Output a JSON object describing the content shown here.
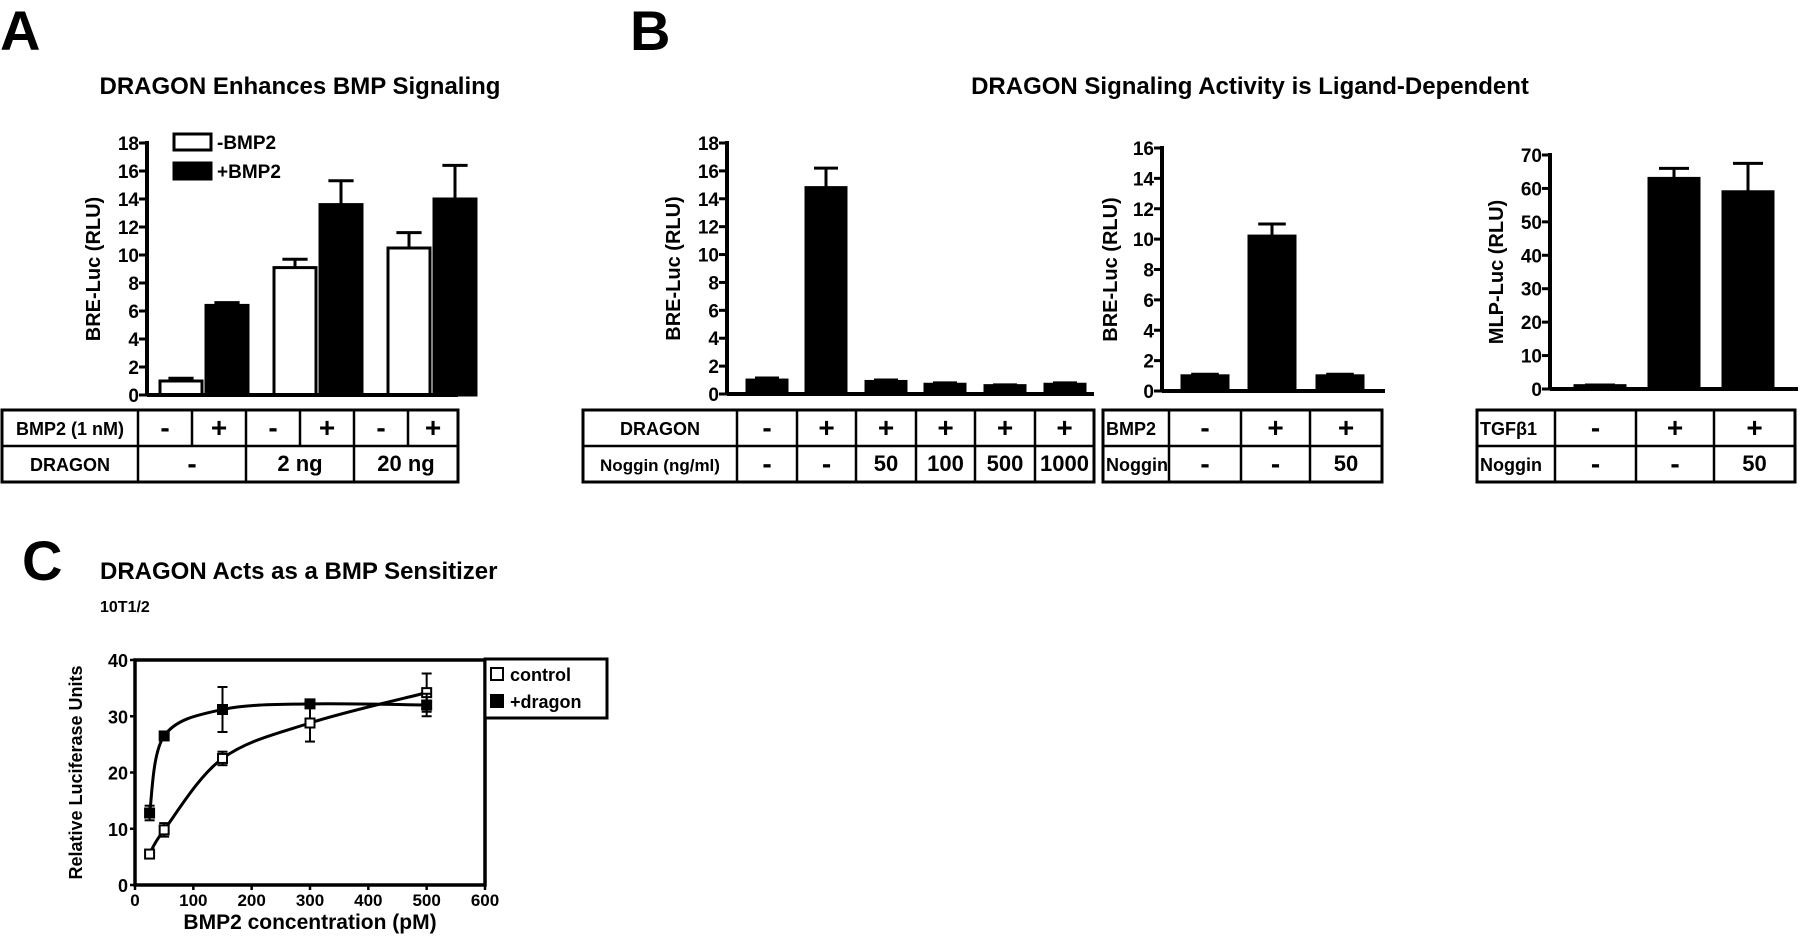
{
  "panels": {
    "a_label": "A",
    "b_label": "B",
    "c_label": "C",
    "a_title": "DRAGON Enhances BMP Signaling",
    "b_title": "DRAGON Signaling Activity is Ligand-Dependent",
    "c_title": "DRAGON Acts as a BMP Sensitizer",
    "c_subtitle": "10T1/2"
  },
  "colors": {
    "black": "#000000",
    "white": "#ffffff"
  },
  "tables": {
    "a": {
      "rows": [
        {
          "label": "BMP2 (1 nM)",
          "cells": [
            "-",
            "+",
            "-",
            "+",
            "-",
            "+"
          ]
        },
        {
          "label": "DRAGON",
          "cells": [
            "-",
            "2 ng",
            "20 ng"
          ]
        }
      ]
    },
    "b1": {
      "rows": [
        {
          "label": "DRAGON",
          "cells": [
            "-",
            "+",
            "+",
            "+",
            "+",
            "+"
          ]
        },
        {
          "label": "Noggin (ng/ml)",
          "cells": [
            "-",
            "-",
            "50",
            "100",
            "500",
            "1000"
          ]
        }
      ]
    },
    "b2": {
      "rows": [
        {
          "label": "BMP2",
          "cells": [
            "-",
            "+",
            "+"
          ]
        },
        {
          "label": "Noggin",
          "cells": [
            "-",
            "-",
            "50"
          ]
        }
      ]
    },
    "b3": {
      "rows": [
        {
          "label": "TGFβ1",
          "cells": [
            "-",
            "+",
            "+"
          ]
        },
        {
          "label": "Noggin",
          "cells": [
            "-",
            "-",
            "50"
          ]
        }
      ]
    }
  },
  "chart_data": [
    {
      "id": "a",
      "type": "bar",
      "title": "DRAGON Enhances BMP Signaling",
      "ylabel": "BRE-Luc (RLU)",
      "ylim": [
        0,
        18
      ],
      "yticks": [
        "0",
        "2",
        "4",
        "6",
        "8",
        "10",
        "12",
        "14",
        "16",
        "18"
      ],
      "legend": [
        {
          "name": "-BMP2",
          "fill": "#ffffff"
        },
        {
          "name": "+BMP2",
          "fill": "#000000"
        }
      ],
      "legend_position": "top-left",
      "values": [
        1.0,
        6.4,
        9.1,
        13.6,
        10.5,
        14.0
      ],
      "errors": [
        0.2,
        0.2,
        0.6,
        1.7,
        1.1,
        2.4
      ],
      "fills": [
        "#ffffff",
        "#000000",
        "#ffffff",
        "#000000",
        "#ffffff",
        "#000000"
      ]
    },
    {
      "id": "b1",
      "type": "bar",
      "ylabel": "BRE-Luc (RLU)",
      "ylim": [
        0,
        18
      ],
      "yticks": [
        "0",
        "2",
        "4",
        "6",
        "8",
        "10",
        "12",
        "14",
        "16",
        "18"
      ],
      "values": [
        1.0,
        14.8,
        0.9,
        0.7,
        0.6,
        0.7
      ],
      "errors": [
        0.15,
        1.4,
        0.1,
        0.1,
        0.05,
        0.1
      ],
      "fills": [
        "#000000",
        "#000000",
        "#000000",
        "#000000",
        "#000000",
        "#000000"
      ]
    },
    {
      "id": "b2",
      "type": "bar",
      "ylabel": "BRE-Luc (RLU)",
      "ylim": [
        0,
        16
      ],
      "yticks": [
        "0",
        "2",
        "4",
        "6",
        "8",
        "10",
        "12",
        "14",
        "16"
      ],
      "values": [
        1.0,
        10.2,
        1.0
      ],
      "errors": [
        0.1,
        0.8,
        0.1
      ],
      "fills": [
        "#000000",
        "#000000",
        "#000000"
      ]
    },
    {
      "id": "b3",
      "type": "bar",
      "ylabel": "MLP-Luc (RLU)",
      "ylim": [
        0,
        70
      ],
      "yticks": [
        "0",
        "10",
        "20",
        "30",
        "40",
        "50",
        "60",
        "70"
      ],
      "values": [
        1.0,
        63,
        59
      ],
      "errors": [
        0.2,
        3,
        8.5
      ],
      "fills": [
        "#000000",
        "#000000",
        "#000000"
      ]
    },
    {
      "id": "c",
      "type": "line",
      "title": "DRAGON Acts as a BMP Sensitizer",
      "xlabel": "BMP2 concentration (pM)",
      "ylabel": "Relative Luciferase Units",
      "xlim": [
        0,
        600
      ],
      "ylim": [
        0,
        40
      ],
      "xticks": [
        "0",
        "100",
        "200",
        "300",
        "400",
        "500",
        "600"
      ],
      "yticks": [
        "0",
        "10",
        "20",
        "30",
        "40"
      ],
      "legend_position": "top-right (outside)",
      "series": [
        {
          "name": "control",
          "marker": "open-square",
          "x": [
            25,
            50,
            150,
            300,
            500
          ],
          "y": [
            5.5,
            9.8,
            22.5,
            28.8,
            34.2
          ],
          "err": [
            0.5,
            1.2,
            1.2,
            3.3,
            3.4
          ]
        },
        {
          "name": "+dragon",
          "marker": "filled-square",
          "x": [
            25,
            50,
            150,
            300,
            500
          ],
          "y": [
            12.8,
            26.5,
            31.2,
            32.2,
            32.0
          ],
          "err": [
            1.3,
            0.4,
            4.0,
            0.5,
            2.0
          ]
        }
      ]
    }
  ]
}
